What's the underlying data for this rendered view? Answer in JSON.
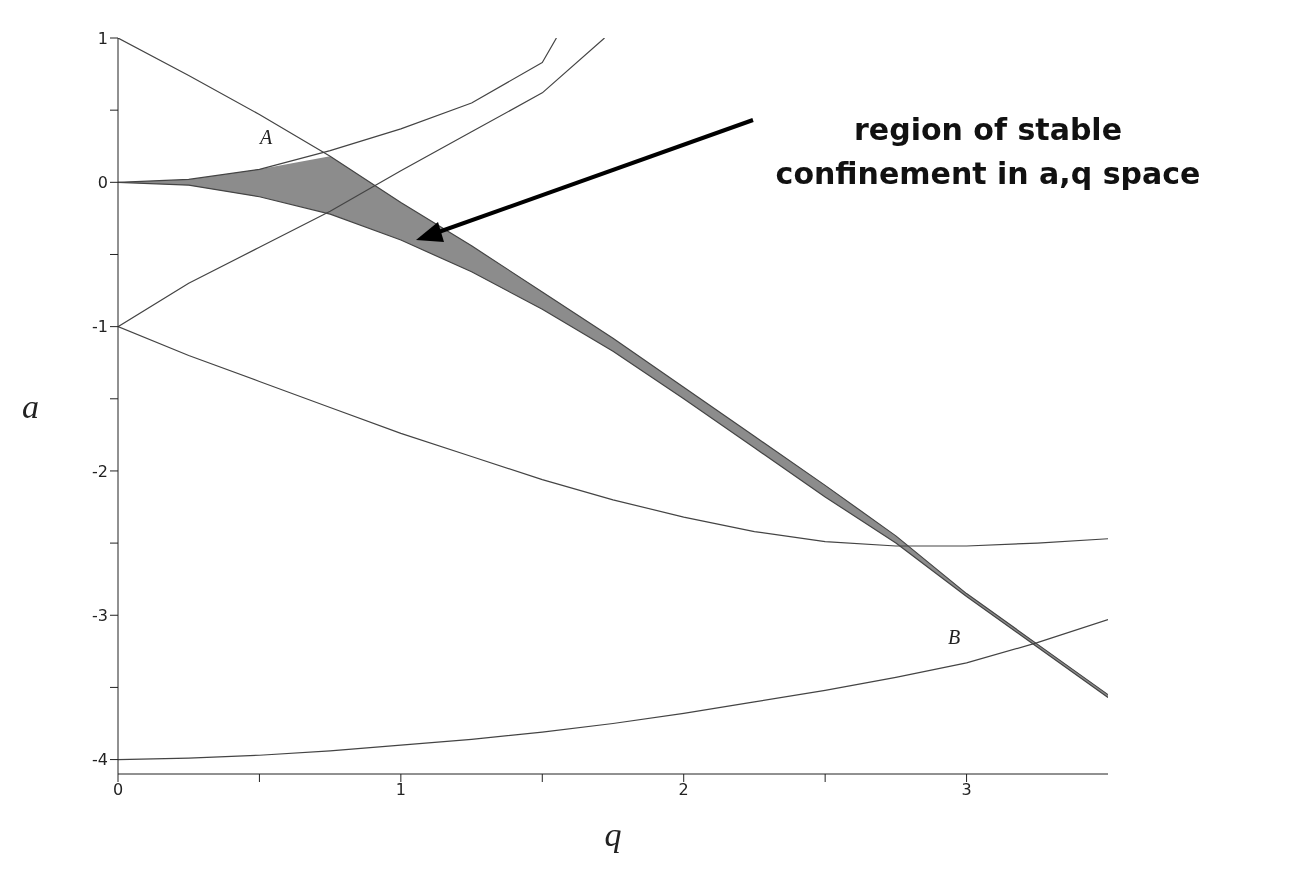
{
  "chart_data": {
    "type": "line",
    "xlabel": "q",
    "ylabel": "a",
    "x": [
      0,
      0.25,
      0.5,
      0.75,
      1,
      1.25,
      1.5,
      1.75,
      2,
      2.25,
      2.5,
      2.75,
      3,
      3.25,
      3.5
    ],
    "series": [
      {
        "color": "#444444",
        "values": [
          1,
          0.74,
          0.47,
          0.18,
          -0.14,
          -0.44,
          -0.76,
          -1.08,
          -1.42,
          -1.76,
          -2.1,
          -2.45,
          -2.85,
          -3.2,
          -3.55
        ],
        "upper": [
          0,
          0.02,
          0.09,
          0.18,
          -0.14,
          -0.44,
          -0.76,
          -1.08,
          -1.42,
          -1.76,
          -2.1,
          -2.45,
          -2.85,
          -3.2,
          -3.55
        ],
        "lower": [
          0,
          -0.02,
          -0.1,
          -0.22,
          -0.4,
          -0.62,
          -0.88,
          -1.17,
          -1.5,
          -1.84,
          -2.18,
          -2.5,
          -2.87,
          -3.22,
          -3.57
        ]
      },
      {
        "color": "#444444",
        "values": [
          0,
          -0.02,
          -0.1,
          -0.22,
          -0.4,
          -0.62,
          -0.88,
          -1.17,
          -1.5,
          -1.84,
          -2.18,
          -2.5,
          -2.87,
          -3.22,
          -3.57
        ]
      },
      {
        "color": "#444444",
        "x": [
          0,
          0.25,
          0.5,
          0.75,
          1,
          1.25,
          1.5,
          1.55
        ],
        "values": [
          0,
          0.02,
          0.09,
          0.22,
          0.37,
          0.55,
          0.83,
          1
        ]
      },
      {
        "color": "#444444",
        "x": [
          0,
          0.25,
          0.5,
          0.75,
          1,
          1.25,
          1.5,
          1.72
        ],
        "values": [
          -1,
          -0.7,
          -0.45,
          -0.2,
          0.08,
          0.35,
          0.62,
          1
        ]
      },
      {
        "color": "#444444",
        "values": [
          -1,
          -1.2,
          -1.38,
          -1.56,
          -1.74,
          -1.9,
          -2.06,
          -2.2,
          -2.32,
          -2.42,
          -2.49,
          -2.52,
          -2.52,
          -2.5,
          -2.47
        ]
      },
      {
        "color": "#444444",
        "values": [
          -4,
          -3.99,
          -3.97,
          -3.94,
          -3.9,
          -3.86,
          -3.81,
          -3.75,
          -3.68,
          -3.6,
          -3.52,
          -3.43,
          -3.33,
          -3.19,
          -3.03
        ]
      }
    ],
    "xlim": [
      0,
      3.5
    ],
    "xticks": [
      0,
      {
        "value": 0.5,
        "label": null
      },
      1,
      {
        "value": 1.5,
        "label": null
      },
      2,
      {
        "value": 2.5,
        "label": null
      },
      3
    ],
    "ylim": [
      -4.1,
      1
    ],
    "yticks": [
      -4,
      {
        "value": -3.5,
        "label": null
      },
      -3,
      {
        "value": -2.5,
        "label": null
      },
      -2,
      {
        "value": -1.5,
        "label": null
      },
      -1,
      {
        "value": -0.5,
        "label": null
      },
      0,
      {
        "value": 0.5,
        "label": null
      },
      1
    ],
    "annotations": [
      "A",
      "B",
      "region of stable\nconfinement in a,q space"
    ]
  }
}
